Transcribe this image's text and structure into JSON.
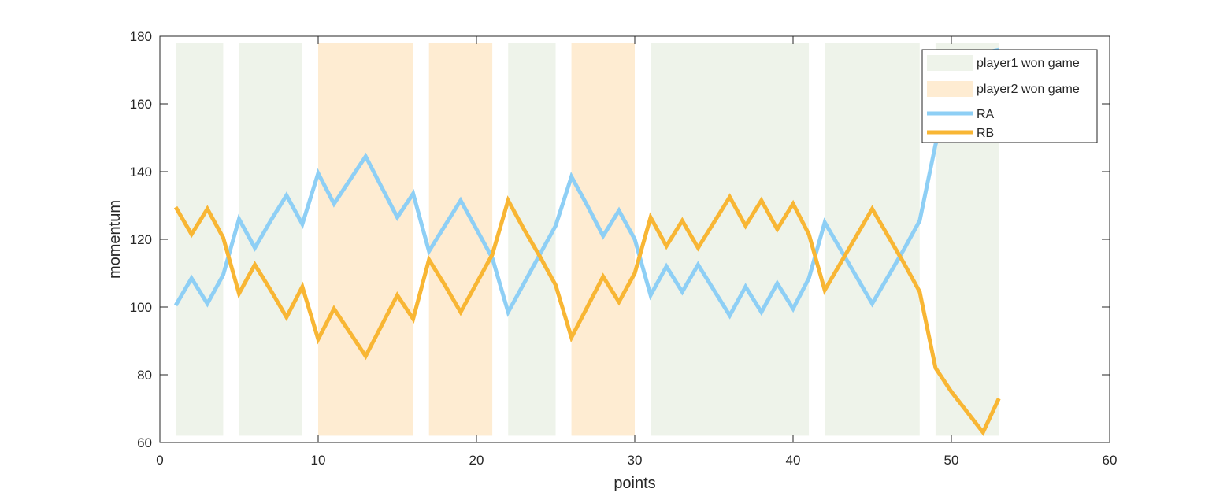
{
  "chart_data": {
    "type": "line",
    "xlabel": "points",
    "ylabel": "momentum",
    "xlim": [
      0,
      60
    ],
    "ylim": [
      60,
      180
    ],
    "xticks": [
      0,
      10,
      20,
      30,
      40,
      50,
      60
    ],
    "yticks": [
      60,
      80,
      100,
      120,
      140,
      160,
      180
    ],
    "grid": false,
    "legend_position": "top-right",
    "legend": [
      "player1 won game",
      "player2 won game",
      "RA",
      "RB"
    ],
    "game_bands": {
      "y_range": [
        62,
        178
      ],
      "player1": {
        "label": "player1 won game",
        "color": "#eef3ea",
        "ranges": [
          [
            1,
            4
          ],
          [
            5,
            9
          ],
          [
            22,
            25
          ],
          [
            31,
            41
          ],
          [
            42,
            48
          ],
          [
            49,
            53
          ]
        ]
      },
      "player2": {
        "label": "player2 won game",
        "color": "#feecd2",
        "ranges": [
          [
            10,
            16
          ],
          [
            17,
            21
          ],
          [
            26,
            30
          ]
        ]
      }
    },
    "x": [
      1,
      2,
      3,
      4,
      5,
      6,
      7,
      8,
      9,
      10,
      11,
      12,
      13,
      14,
      15,
      16,
      17,
      18,
      19,
      20,
      21,
      22,
      23,
      24,
      25,
      26,
      27,
      28,
      29,
      30,
      31,
      32,
      33,
      34,
      35,
      36,
      37,
      38,
      39,
      40,
      41,
      42,
      43,
      44,
      45,
      46,
      47,
      48,
      49,
      50,
      51,
      52,
      53
    ],
    "series": [
      {
        "name": "RA",
        "color": "#8ecff5",
        "values": [
          100.5,
          108.5,
          101,
          109.5,
          126,
          117.5,
          125.5,
          133,
          124.5,
          139.5,
          130.5,
          137.5,
          144.5,
          135.5,
          126.5,
          133.5,
          116.5,
          124,
          131.5,
          123,
          114.5,
          98.5,
          107,
          115.5,
          124,
          138.5,
          130,
          121,
          128.5,
          120,
          103.5,
          112,
          104.5,
          112.5,
          105,
          97.5,
          106,
          98.5,
          107,
          99.5,
          108.5,
          125,
          117,
          109,
          101,
          109,
          117,
          125.5,
          148,
          162,
          170,
          175,
          176
        ]
      },
      {
        "name": "RB",
        "color": "#f8b634",
        "values": [
          129.5,
          121.5,
          129,
          120.5,
          104,
          112.5,
          105,
          97,
          106,
          90.5,
          99.5,
          92.5,
          85.5,
          94.5,
          103.5,
          96.5,
          114,
          106.5,
          98.5,
          107,
          115.5,
          131.5,
          123,
          115,
          106.5,
          91,
          100,
          109,
          101.5,
          110,
          126.5,
          118,
          125.5,
          117.5,
          125,
          132.5,
          124,
          131.5,
          123,
          130.5,
          121.5,
          105,
          113,
          121,
          129,
          121,
          113,
          104.5,
          82,
          75,
          69,
          63,
          73
        ]
      }
    ]
  }
}
